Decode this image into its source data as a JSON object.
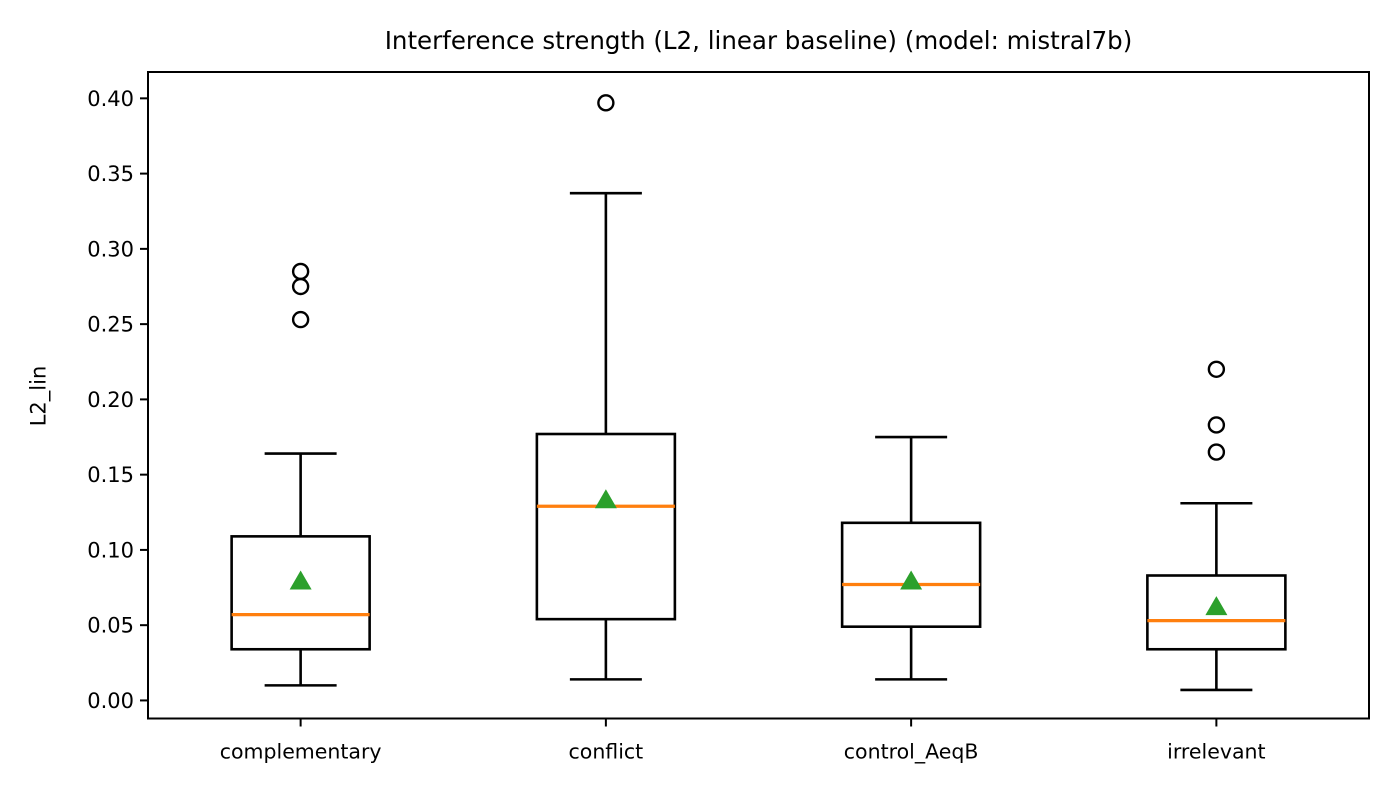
{
  "page": {
    "background": "#ffffff"
  },
  "chart_data": {
    "type": "box",
    "title": "Interference strength (L2, linear baseline) (model: mistral7b)",
    "xlabel": "",
    "ylabel": "L2_lin",
    "categories": [
      "complementary",
      "conflict",
      "control_AeqB",
      "irrelevant"
    ],
    "ylim": [
      -0.012,
      0.4175
    ],
    "grid": false,
    "yticks": [
      {
        "value": 0.0,
        "label": "0.00"
      },
      {
        "value": 0.05,
        "label": "0.05"
      },
      {
        "value": 0.1,
        "label": "0.10"
      },
      {
        "value": 0.15,
        "label": "0.15"
      },
      {
        "value": 0.2,
        "label": "0.20"
      },
      {
        "value": 0.25,
        "label": "0.25"
      },
      {
        "value": 0.3,
        "label": "0.30"
      },
      {
        "value": 0.35,
        "label": "0.35"
      },
      {
        "value": 0.4,
        "label": "0.40"
      }
    ],
    "series": [
      {
        "category": "complementary",
        "whisker_low": 0.01,
        "q1": 0.034,
        "median": 0.057,
        "q3": 0.109,
        "whisker_high": 0.164,
        "mean": 0.08,
        "outliers": [
          0.253,
          0.275,
          0.285
        ]
      },
      {
        "category": "conflict",
        "whisker_low": 0.014,
        "q1": 0.054,
        "median": 0.129,
        "q3": 0.177,
        "whisker_high": 0.337,
        "mean": 0.134,
        "outliers": [
          0.397
        ]
      },
      {
        "category": "control_AeqB",
        "whisker_low": 0.014,
        "q1": 0.049,
        "median": 0.077,
        "q3": 0.118,
        "whisker_high": 0.175,
        "mean": 0.08,
        "outliers": []
      },
      {
        "category": "irrelevant",
        "whisker_low": 0.007,
        "q1": 0.034,
        "median": 0.053,
        "q3": 0.083,
        "whisker_high": 0.131,
        "mean": 0.063,
        "outliers": [
          0.165,
          0.183,
          0.22
        ]
      }
    ],
    "colors": {
      "box_line": "#000000",
      "median_line": "#ff7f0e",
      "mean_marker": "#2ca02c",
      "outlier_stroke": "#000000",
      "axes_line": "#000000"
    }
  }
}
